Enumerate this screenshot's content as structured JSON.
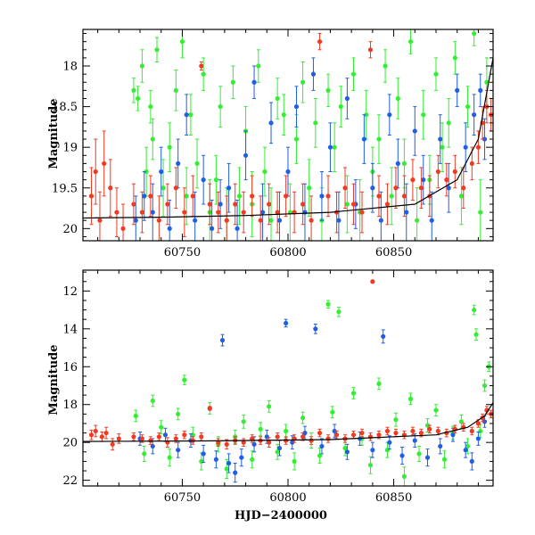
{
  "colors": {
    "green": "#33ee33",
    "blue": "#1f5fe6",
    "red": "#f03a22",
    "model": "#000000"
  },
  "chart_data": [
    {
      "type": "scatter",
      "panel": "top",
      "xlabel": "",
      "ylabel": "Magnitude",
      "xlim": [
        60703,
        60897
      ],
      "ylim": [
        20.15,
        17.55
      ],
      "y_inverted": true,
      "xticks_major": [
        60750,
        60800,
        60850
      ],
      "xticks_minor": [
        60710,
        60720,
        60730,
        60740,
        60760,
        60770,
        60780,
        60790,
        60810,
        60820,
        60830,
        60840,
        60860,
        60870,
        60880,
        60890
      ],
      "yticks_major": [
        18,
        18.5,
        19,
        19.5,
        20
      ],
      "yticks_minor": [
        17.6,
        17.7,
        17.8,
        17.9,
        18.1,
        18.2,
        18.3,
        18.4,
        18.6,
        18.7,
        18.8,
        18.9,
        19.1,
        19.2,
        19.3,
        19.4,
        19.6,
        19.7,
        19.8,
        19.9,
        20.1
      ],
      "xtick_labels": [
        "60750",
        "60800",
        "60850"
      ],
      "ytick_labels": [
        "18",
        "18.5",
        "19",
        "19.5",
        "20"
      ],
      "model_curve": {
        "x": [
          60703,
          60740,
          60780,
          60820,
          60860,
          60880,
          60890,
          60897
        ],
        "y": [
          19.87,
          19.86,
          19.84,
          19.8,
          19.7,
          19.4,
          18.9,
          17.9
        ]
      },
      "series": [
        {
          "color": "green",
          "x": [
            60727,
            60729,
            60731,
            60733,
            60735,
            60736,
            60738,
            60741,
            60744,
            60747,
            60750,
            60752,
            60754,
            60757,
            60760,
            60763,
            60766,
            60768,
            60771,
            60774,
            60777,
            60780,
            60783,
            60786,
            60789,
            60792,
            60795,
            60798,
            60801,
            60804,
            60807,
            60810,
            60813,
            60816,
            60819,
            60822,
            60825,
            60828,
            60831,
            60834,
            60837,
            60840,
            60843,
            60846,
            60849,
            60852,
            60855,
            60858,
            60861,
            60864,
            60867,
            60870,
            60873,
            60876,
            60879,
            60882,
            60885,
            60888,
            60891,
            60894
          ],
          "y": [
            18.3,
            18.4,
            18.0,
            19.3,
            18.5,
            18.9,
            17.8,
            19.5,
            19.0,
            18.3,
            17.7,
            19.6,
            18.6,
            19.2,
            18.1,
            19.8,
            19.4,
            18.5,
            19.9,
            18.2,
            19.6,
            18.8,
            19.7,
            18.0,
            19.3,
            19.9,
            18.4,
            18.6,
            19.8,
            18.9,
            18.2,
            19.5,
            18.7,
            19.9,
            18.3,
            19.0,
            18.5,
            19.7,
            18.1,
            19.8,
            18.6,
            19.3,
            18.9,
            18.0,
            19.6,
            18.4,
            19.2,
            17.7,
            19.9,
            18.6,
            19.4,
            18.1,
            19.0,
            18.7,
            17.9,
            19.6,
            18.5,
            17.6,
            19.8,
            18.2
          ],
          "err": [
            0.15,
            0.15,
            0.2,
            0.3,
            0.2,
            0.25,
            0.15,
            0.35,
            0.3,
            0.25,
            0.2,
            0.35,
            0.25,
            0.3,
            0.2,
            0.4,
            0.3,
            0.25,
            0.4,
            0.2,
            0.35,
            0.3,
            0.4,
            0.2,
            0.3,
            0.4,
            0.25,
            0.25,
            0.35,
            0.3,
            0.25,
            0.35,
            0.3,
            0.4,
            0.2,
            0.3,
            0.25,
            0.35,
            0.2,
            0.4,
            0.3,
            0.3,
            0.3,
            0.2,
            0.35,
            0.25,
            0.3,
            0.15,
            0.4,
            0.3,
            0.3,
            0.2,
            0.3,
            0.3,
            0.2,
            0.35,
            0.25,
            0.15,
            0.4,
            0.3
          ]
        },
        {
          "color": "blue",
          "x": [
            60728,
            60732,
            60736,
            60740,
            60744,
            60748,
            60752,
            60756,
            60760,
            60764,
            60768,
            60772,
            60776,
            60780,
            60784,
            60788,
            60792,
            60796,
            60800,
            60804,
            60808,
            60812,
            60816,
            60820,
            60824,
            60828,
            60832,
            60836,
            60840,
            60844,
            60848,
            60852,
            60856,
            60860,
            60864,
            60868,
            60872,
            60876,
            60880,
            60884,
            60888,
            60891,
            60893
          ],
          "y": [
            19.9,
            19.6,
            19.8,
            19.3,
            20.0,
            19.2,
            18.6,
            19.9,
            19.4,
            20.0,
            19.7,
            19.5,
            20.0,
            19.1,
            18.2,
            19.8,
            18.7,
            19.9,
            19.3,
            18.5,
            19.8,
            18.1,
            19.6,
            19.0,
            19.9,
            18.4,
            19.7,
            18.9,
            19.5,
            19.9,
            18.6,
            19.2,
            19.8,
            18.8,
            19.4,
            19.9,
            18.9,
            19.5,
            18.3,
            19.0,
            18.6,
            18.3,
            18.9
          ],
          "err": [
            0.3,
            0.3,
            0.35,
            0.3,
            0.35,
            0.3,
            0.25,
            0.35,
            0.3,
            0.35,
            0.3,
            0.3,
            0.35,
            0.3,
            0.2,
            0.35,
            0.25,
            0.35,
            0.3,
            0.25,
            0.35,
            0.2,
            0.3,
            0.3,
            0.35,
            0.25,
            0.3,
            0.3,
            0.3,
            0.35,
            0.25,
            0.3,
            0.35,
            0.3,
            0.3,
            0.35,
            0.3,
            0.3,
            0.2,
            0.3,
            0.25,
            0.2,
            0.25
          ]
        },
        {
          "color": "red",
          "x": [
            60707,
            60709,
            60711,
            60713,
            60716,
            60719,
            60722,
            60727,
            60731,
            60735,
            60739,
            60743,
            60747,
            60751,
            60755,
            60759,
            60763,
            60767,
            60771,
            60775,
            60779,
            60783,
            60787,
            60791,
            60795,
            60799,
            60803,
            60807,
            60811,
            60815,
            60819,
            60823,
            60827,
            60831,
            60835,
            60839,
            60843,
            60847,
            60851,
            60855,
            60859,
            60863,
            60867,
            60871,
            60875,
            60879,
            60883,
            60887,
            60890,
            60892,
            60894,
            60896
          ],
          "y": [
            19.6,
            19.3,
            19.9,
            19.2,
            19.5,
            19.8,
            20.0,
            19.7,
            19.8,
            19.6,
            19.9,
            19.7,
            19.5,
            19.8,
            19.6,
            18.0,
            19.7,
            19.8,
            19.9,
            19.7,
            19.8,
            19.6,
            19.9,
            19.7,
            19.8,
            19.6,
            19.8,
            19.7,
            19.9,
            17.7,
            19.6,
            19.8,
            19.5,
            19.7,
            19.8,
            17.8,
            19.6,
            19.7,
            19.5,
            19.6,
            19.4,
            19.5,
            19.6,
            19.3,
            19.4,
            19.3,
            19.5,
            19.2,
            19.0,
            18.7,
            18.5,
            18.6
          ],
          "err": [
            0.35,
            0.4,
            0.35,
            0.4,
            0.35,
            0.3,
            0.3,
            0.25,
            0.25,
            0.25,
            0.3,
            0.25,
            0.25,
            0.3,
            0.25,
            0.05,
            0.25,
            0.25,
            0.3,
            0.25,
            0.25,
            0.25,
            0.3,
            0.25,
            0.25,
            0.25,
            0.25,
            0.25,
            0.3,
            0.1,
            0.25,
            0.25,
            0.25,
            0.25,
            0.25,
            0.1,
            0.25,
            0.25,
            0.25,
            0.25,
            0.25,
            0.25,
            0.25,
            0.2,
            0.2,
            0.2,
            0.25,
            0.2,
            0.2,
            0.2,
            0.2,
            0.2
          ]
        }
      ]
    },
    {
      "type": "scatter",
      "panel": "bottom",
      "xlabel": "HJD−2400000",
      "ylabel": "Magnitude",
      "xlim": [
        60703,
        60897
      ],
      "ylim": [
        22.3,
        10.9
      ],
      "y_inverted": true,
      "xticks_major": [
        60750,
        60800,
        60850
      ],
      "xticks_minor": [
        60710,
        60720,
        60730,
        60740,
        60760,
        60770,
        60780,
        60790,
        60810,
        60820,
        60830,
        60840,
        60860,
        60870,
        60880,
        60890
      ],
      "yticks_major": [
        12,
        14,
        16,
        18,
        20,
        22
      ],
      "yticks_minor": [
        11,
        11.5,
        12.5,
        13,
        13.5,
        14.5,
        15,
        15.5,
        16.5,
        17,
        17.5,
        18.5,
        19,
        19.5,
        20.5,
        21,
        21.5
      ],
      "xtick_labels": [
        "60750",
        "60800",
        "60850"
      ],
      "ytick_labels": [
        "12",
        "14",
        "16",
        "18",
        "20",
        "22"
      ],
      "model_curve": {
        "x": [
          60703,
          60760,
          60820,
          60870,
          60885,
          60893,
          60897
        ],
        "y": [
          19.95,
          19.92,
          19.85,
          19.6,
          19.2,
          18.6,
          17.9
        ]
      },
      "series": [
        {
          "color": "green",
          "x": [
            60728,
            60732,
            60736,
            60740,
            60744,
            60748,
            60751,
            60755,
            60759,
            60763,
            60767,
            60771,
            60775,
            60779,
            60783,
            60787,
            60791,
            60795,
            60799,
            60803,
            60807,
            60811,
            60815,
            60819,
            60821,
            60824,
            60827,
            60831,
            60835,
            60839,
            60843,
            60847,
            60851,
            60855,
            60858,
            60862,
            60866,
            60870,
            60874,
            60878,
            60882,
            60885,
            60888,
            60889,
            60891,
            60893,
            60895
          ],
          "y": [
            18.6,
            20.6,
            17.8,
            19.2,
            20.8,
            18.5,
            16.7,
            19.6,
            21.0,
            18.2,
            20.1,
            21.4,
            19.7,
            18.9,
            20.9,
            19.3,
            18.1,
            20.5,
            19.4,
            21.0,
            18.7,
            19.9,
            20.7,
            12.7,
            18.4,
            13.1,
            20.3,
            17.4,
            19.8,
            21.2,
            16.9,
            20.4,
            18.8,
            21.8,
            17.7,
            20.6,
            19.1,
            18.3,
            20.9,
            19.5,
            18.9,
            20.2,
            13.0,
            14.3,
            19.4,
            17.0,
            16.0
          ],
          "err": [
            0.3,
            0.4,
            0.3,
            0.35,
            0.45,
            0.3,
            0.25,
            0.4,
            0.45,
            0.3,
            0.4,
            0.5,
            0.35,
            0.35,
            0.45,
            0.35,
            0.3,
            0.4,
            0.35,
            0.45,
            0.3,
            0.4,
            0.4,
            0.2,
            0.3,
            0.25,
            0.4,
            0.3,
            0.35,
            0.45,
            0.3,
            0.4,
            0.35,
            0.5,
            0.3,
            0.4,
            0.35,
            0.3,
            0.45,
            0.35,
            0.35,
            0.4,
            0.25,
            0.3,
            0.35,
            0.3,
            0.25
          ]
        },
        {
          "color": "blue",
          "x": [
            60730,
            60736,
            60742,
            60748,
            60754,
            60760,
            60766,
            60769,
            60772,
            60775,
            60778,
            60784,
            60790,
            60796,
            60799,
            60802,
            60808,
            60813,
            60816,
            60822,
            60828,
            60834,
            60840,
            60845,
            60848,
            60854,
            60860,
            60866,
            60872,
            60878,
            60884,
            60887,
            60890,
            60893
          ],
          "y": [
            19.8,
            20.2,
            19.6,
            20.4,
            19.9,
            20.6,
            20.9,
            14.6,
            21.1,
            21.6,
            20.8,
            20.1,
            19.7,
            20.3,
            13.7,
            20.0,
            19.5,
            14.0,
            20.2,
            19.4,
            20.5,
            19.8,
            20.4,
            14.4,
            20.0,
            20.7,
            19.9,
            20.8,
            20.2,
            19.6,
            20.4,
            21.0,
            19.8,
            18.9
          ],
          "err": [
            0.35,
            0.4,
            0.35,
            0.4,
            0.35,
            0.45,
            0.45,
            0.3,
            0.5,
            0.5,
            0.45,
            0.4,
            0.35,
            0.4,
            0.2,
            0.35,
            0.35,
            0.25,
            0.4,
            0.35,
            0.4,
            0.35,
            0.4,
            0.35,
            0.35,
            0.45,
            0.35,
            0.45,
            0.4,
            0.35,
            0.4,
            0.45,
            0.35,
            0.3
          ]
        },
        {
          "color": "red",
          "x": [
            60707,
            60709,
            60712,
            60714,
            60717,
            60720,
            60727,
            60731,
            60735,
            60739,
            60743,
            60747,
            60751,
            60755,
            60759,
            60763,
            60767,
            60771,
            60775,
            60779,
            60783,
            60787,
            60791,
            60795,
            60799,
            60803,
            60807,
            60811,
            60815,
            60819,
            60823,
            60827,
            60831,
            60835,
            60839,
            60840,
            60843,
            60847,
            60851,
            60855,
            60859,
            60863,
            60867,
            60871,
            60875,
            60879,
            60883,
            60887,
            60890,
            60892,
            60894,
            60896
          ],
          "y": [
            19.6,
            19.4,
            19.7,
            19.5,
            20.1,
            19.8,
            19.7,
            19.8,
            19.9,
            19.7,
            20.0,
            19.8,
            19.6,
            19.9,
            19.7,
            18.2,
            20.0,
            20.1,
            19.9,
            20.0,
            19.8,
            19.9,
            20.0,
            19.7,
            19.9,
            19.8,
            19.7,
            19.9,
            19.5,
            19.8,
            19.6,
            19.8,
            19.6,
            19.5,
            19.7,
            11.5,
            19.6,
            19.4,
            19.5,
            19.6,
            19.4,
            19.5,
            19.3,
            19.4,
            19.5,
            19.3,
            19.2,
            19.4,
            19.0,
            18.7,
            18.3,
            18.5
          ],
          "err": [
            0.25,
            0.3,
            0.25,
            0.3,
            0.3,
            0.25,
            0.2,
            0.2,
            0.2,
            0.2,
            0.25,
            0.2,
            0.2,
            0.2,
            0.2,
            0.1,
            0.2,
            0.25,
            0.2,
            0.2,
            0.2,
            0.2,
            0.25,
            0.2,
            0.2,
            0.2,
            0.2,
            0.2,
            0.2,
            0.2,
            0.2,
            0.2,
            0.2,
            0.2,
            0.2,
            0.05,
            0.2,
            0.2,
            0.2,
            0.2,
            0.2,
            0.2,
            0.2,
            0.2,
            0.2,
            0.2,
            0.2,
            0.2,
            0.2,
            0.2,
            0.2,
            0.2
          ]
        }
      ]
    }
  ]
}
